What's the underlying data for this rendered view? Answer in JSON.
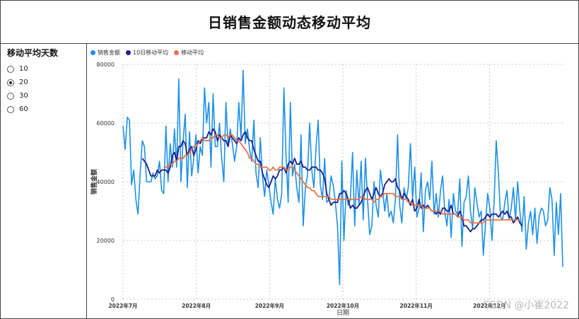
{
  "title": "日销售金额动态移动平均",
  "slicer": {
    "title": "移动平均天数",
    "options": [
      "10",
      "20",
      "30",
      "60"
    ],
    "selected": "20"
  },
  "watermark": "CSDN @小崔2022",
  "colors": {
    "sales": "#1E90E8",
    "ma10": "#1A1F8C",
    "ma": "#E8734A",
    "grid": "#c8c8c8"
  },
  "chart_data": {
    "type": "line",
    "xlabel": "日期",
    "ylabel": "销售金额",
    "ylim": [
      0,
      80000
    ],
    "yticks": [
      "0",
      "20000",
      "40000",
      "60000",
      "80000"
    ],
    "xticks": [
      "2022年7月",
      "2022年8月",
      "2022年9月",
      "2022年10月",
      "2022年11月",
      "2022年12月"
    ],
    "grid": true,
    "legend_position": "top-left",
    "series": [
      {
        "name": "销售金额",
        "values": [
          59000,
          51000,
          62000,
          61000,
          39000,
          44000,
          34000,
          29000,
          43000,
          54000,
          52000,
          40000,
          40000,
          40000,
          43000,
          41000,
          42000,
          47000,
          37000,
          36000,
          59000,
          40000,
          53000,
          45000,
          58000,
          45000,
          75000,
          40000,
          54000,
          63000,
          38000,
          57000,
          42000,
          48000,
          56000,
          43000,
          52000,
          49000,
          72000,
          60000,
          67000,
          45000,
          70000,
          52000,
          52000,
          60000,
          48000,
          40000,
          67000,
          52000,
          58000,
          53000,
          47000,
          52000,
          67000,
          55000,
          78000,
          53000,
          58000,
          51000,
          47000,
          61000,
          43000,
          38000,
          55000,
          42000,
          35000,
          44000,
          39000,
          33000,
          29000,
          41000,
          34000,
          31000,
          36000,
          72000,
          49000,
          33000,
          67000,
          42000,
          46000,
          38000,
          33000,
          56000,
          25000,
          38000,
          42000,
          60000,
          44000,
          38000,
          52000,
          61000,
          39000,
          34000,
          48000,
          33000,
          34000,
          42000,
          39000,
          33000,
          25000,
          5000,
          47000,
          20000,
          37000,
          32000,
          34000,
          50000,
          25000,
          44000,
          32000,
          47000,
          27000,
          48000,
          34000,
          22000,
          25000,
          40000,
          32000,
          28000,
          44000,
          38000,
          30000,
          36000,
          28000,
          30000,
          26000,
          34000,
          56000,
          32000,
          26000,
          38000,
          34000,
          38000,
          53000,
          34000,
          45000,
          28000,
          31000,
          43000,
          23000,
          37000,
          40000,
          34000,
          47000,
          29000,
          36000,
          28000,
          37000,
          42000,
          30000,
          25000,
          34000,
          21000,
          36000,
          30000,
          29000,
          41000,
          18000,
          33000,
          35000,
          42000,
          30000,
          24000,
          38000,
          33000,
          28000,
          30000,
          15000,
          26000,
          36000,
          31000,
          20000,
          33000,
          54000,
          43000,
          28000,
          27000,
          33000,
          37000,
          27000,
          31000,
          38000,
          27000,
          40000,
          30000,
          23000,
          35000,
          17000,
          26000,
          30000,
          22000,
          31000,
          19000,
          28000,
          31000,
          30000,
          25000,
          27000,
          38000,
          34000,
          15000,
          33000,
          22000,
          36000,
          11000
        ]
      },
      {
        "name": "10日移动平均",
        "values": [
          null,
          null,
          null,
          null,
          null,
          null,
          null,
          null,
          null,
          48000,
          47000,
          46000,
          44000,
          42000,
          42000,
          42000,
          44000,
          43000,
          44000,
          44000,
          44000,
          43000,
          45000,
          49000,
          50000,
          47000,
          52000,
          52000,
          54000,
          53000,
          49000,
          51000,
          52000,
          49000,
          51000,
          54000,
          53000,
          55000,
          55000,
          55000,
          57000,
          56000,
          58000,
          57000,
          54000,
          56000,
          55000,
          54000,
          54000,
          52000,
          56000,
          55000,
          54000,
          53000,
          55000,
          54000,
          56000,
          57000,
          55000,
          54000,
          54000,
          51000,
          49000,
          47000,
          47000,
          43000,
          41000,
          39000,
          38000,
          40000,
          42000,
          41000,
          42000,
          44000,
          44000,
          45000,
          43000,
          46000,
          47000,
          46000,
          48000,
          46000,
          46000,
          47000,
          45000,
          45000,
          44000,
          44000,
          45000,
          45000,
          45000,
          44000,
          44000,
          43000,
          41000,
          36000,
          34000,
          32000,
          33000,
          33000,
          33000,
          36000,
          36000,
          37000,
          36000,
          34000,
          31000,
          32000,
          31000,
          31000,
          32000,
          33000,
          35000,
          37000,
          38000,
          36000,
          34000,
          36000,
          38000,
          36000,
          35000,
          36000,
          39000,
          40000,
          41000,
          40000,
          40000,
          41000,
          38000,
          37000,
          34000,
          36000,
          35000,
          34000,
          32000,
          34000,
          30000,
          31000,
          34000,
          31000,
          32000,
          31000,
          32000,
          31000,
          30000,
          30000,
          29000,
          30000,
          29000,
          31000,
          31000,
          30000,
          30000,
          32000,
          29000,
          29000,
          28000,
          30000,
          28000,
          25000,
          25000,
          24000,
          23000,
          24000,
          24000,
          25000,
          26000,
          27000,
          27000,
          28000,
          29000,
          28000,
          29000,
          29000,
          29000,
          28000,
          29000,
          30000,
          29000,
          30000,
          28000,
          28000,
          26000,
          27000,
          28000,
          26000,
          25000
        ]
      },
      {
        "name": "移动平均",
        "values": [
          null,
          null,
          null,
          null,
          null,
          null,
          null,
          null,
          null,
          null,
          null,
          null,
          null,
          null,
          null,
          null,
          null,
          null,
          null,
          45000,
          45000,
          45000,
          46000,
          46000,
          47000,
          47000,
          48000,
          48000,
          48000,
          49000,
          49000,
          50000,
          51000,
          52000,
          52000,
          53000,
          54000,
          55000,
          54000,
          54000,
          54000,
          55000,
          55000,
          56000,
          56000,
          55000,
          55000,
          56000,
          56000,
          55000,
          56000,
          56000,
          55000,
          54000,
          54000,
          53000,
          52000,
          51000,
          50000,
          48000,
          48000,
          47000,
          46000,
          46000,
          45000,
          45000,
          45000,
          45000,
          44000,
          44000,
          45000,
          44000,
          44000,
          45000,
          45000,
          45000,
          44000,
          44000,
          45000,
          45000,
          44000,
          43000,
          42000,
          41000,
          40000,
          39000,
          38000,
          38000,
          37000,
          37000,
          36000,
          35000,
          35000,
          35000,
          35000,
          35000,
          35000,
          34000,
          34000,
          34000,
          34000,
          34000,
          34000,
          34000,
          34000,
          34000,
          34000,
          34000,
          34000,
          34000,
          34000,
          35000,
          35000,
          34000,
          34000,
          34000,
          34000,
          33000,
          34000,
          34000,
          35000,
          35000,
          36000,
          36000,
          36000,
          36000,
          36000,
          35000,
          35000,
          35000,
          34000,
          34000,
          34000,
          33000,
          33000,
          32000,
          32000,
          32000,
          32000,
          32000,
          31000,
          31000,
          31000,
          31000,
          30000,
          30000,
          30000,
          30000,
          30000,
          29000,
          29000,
          29000,
          29000,
          29000,
          29000,
          29000,
          28000,
          28000,
          28000,
          27000,
          27000,
          27000,
          26000,
          26000,
          26000,
          26000,
          26000,
          26000,
          26000,
          27000,
          27000,
          27000,
          27000,
          27000,
          27000,
          27000,
          27000,
          27000,
          27000,
          27000,
          27000,
          27000,
          27000,
          27000,
          27000,
          27000
        ]
      }
    ]
  }
}
